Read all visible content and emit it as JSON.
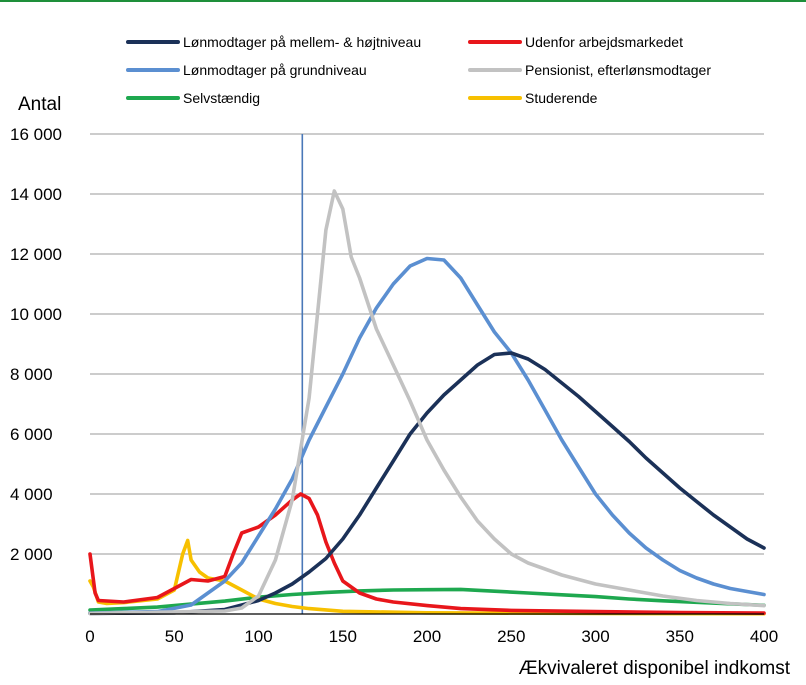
{
  "chart_data": {
    "type": "line",
    "title": "",
    "ylabel": "Antal",
    "xlabel": "Ækvivaleret disponibel indkomst",
    "xlim": [
      0,
      400
    ],
    "ylim": [
      0,
      16000
    ],
    "x_ticks": [
      "0",
      "50",
      "100",
      "150",
      "200",
      "250",
      "300",
      "350",
      "400"
    ],
    "y_ticks": [
      "2 000",
      "4 000",
      "6 000",
      "8 000",
      "10 000",
      "12 000",
      "14 000",
      "16 000"
    ],
    "grid": "horizontal",
    "legend_position": "top",
    "reference_line_x": 126,
    "series": [
      {
        "name": "Lønmodtager på mellem- & højtniveau",
        "color": "#1b3158",
        "points": [
          [
            0,
            20
          ],
          [
            50,
            40
          ],
          [
            80,
            150
          ],
          [
            100,
            450
          ],
          [
            110,
            700
          ],
          [
            120,
            1000
          ],
          [
            130,
            1400
          ],
          [
            140,
            1850
          ],
          [
            150,
            2500
          ],
          [
            160,
            3300
          ],
          [
            170,
            4200
          ],
          [
            180,
            5100
          ],
          [
            190,
            6000
          ],
          [
            200,
            6700
          ],
          [
            210,
            7300
          ],
          [
            220,
            7800
          ],
          [
            230,
            8300
          ],
          [
            240,
            8650
          ],
          [
            250,
            8700
          ],
          [
            260,
            8500
          ],
          [
            270,
            8150
          ],
          [
            280,
            7700
          ],
          [
            290,
            7250
          ],
          [
            300,
            6750
          ],
          [
            310,
            6250
          ],
          [
            320,
            5750
          ],
          [
            330,
            5200
          ],
          [
            340,
            4700
          ],
          [
            350,
            4200
          ],
          [
            360,
            3750
          ],
          [
            370,
            3300
          ],
          [
            380,
            2900
          ],
          [
            390,
            2500
          ],
          [
            400,
            2200
          ]
        ]
      },
      {
        "name": "Udenfor arbejdsmarkedet",
        "color": "#e8161b",
        "points": [
          [
            0,
            2000
          ],
          [
            3,
            700
          ],
          [
            5,
            450
          ],
          [
            20,
            400
          ],
          [
            40,
            550
          ],
          [
            50,
            850
          ],
          [
            60,
            1150
          ],
          [
            70,
            1100
          ],
          [
            80,
            1250
          ],
          [
            85,
            2000
          ],
          [
            90,
            2700
          ],
          [
            100,
            2900
          ],
          [
            110,
            3300
          ],
          [
            120,
            3800
          ],
          [
            125,
            4000
          ],
          [
            130,
            3850
          ],
          [
            135,
            3300
          ],
          [
            140,
            2400
          ],
          [
            145,
            1700
          ],
          [
            150,
            1100
          ],
          [
            160,
            700
          ],
          [
            170,
            500
          ],
          [
            180,
            400
          ],
          [
            200,
            280
          ],
          [
            220,
            180
          ],
          [
            250,
            120
          ],
          [
            300,
            80
          ],
          [
            350,
            50
          ],
          [
            400,
            30
          ]
        ]
      },
      {
        "name": "Lønmodtager på grundniveau",
        "color": "#5b8fd1",
        "points": [
          [
            0,
            30
          ],
          [
            40,
            80
          ],
          [
            60,
            300
          ],
          [
            80,
            1100
          ],
          [
            90,
            1700
          ],
          [
            100,
            2600
          ],
          [
            110,
            3500
          ],
          [
            120,
            4500
          ],
          [
            130,
            5800
          ],
          [
            140,
            6900
          ],
          [
            150,
            8000
          ],
          [
            160,
            9200
          ],
          [
            170,
            10200
          ],
          [
            180,
            11000
          ],
          [
            190,
            11600
          ],
          [
            200,
            11850
          ],
          [
            210,
            11800
          ],
          [
            220,
            11200
          ],
          [
            230,
            10300
          ],
          [
            240,
            9400
          ],
          [
            250,
            8700
          ],
          [
            260,
            7800
          ],
          [
            270,
            6800
          ],
          [
            280,
            5800
          ],
          [
            290,
            4900
          ],
          [
            300,
            4000
          ],
          [
            310,
            3300
          ],
          [
            320,
            2700
          ],
          [
            330,
            2200
          ],
          [
            340,
            1800
          ],
          [
            350,
            1450
          ],
          [
            360,
            1200
          ],
          [
            370,
            1000
          ],
          [
            380,
            850
          ],
          [
            390,
            750
          ],
          [
            400,
            650
          ]
        ]
      },
      {
        "name": "Pensionist, efterlønsmodtager",
        "color": "#c2c2c2",
        "points": [
          [
            0,
            20
          ],
          [
            80,
            100
          ],
          [
            90,
            200
          ],
          [
            100,
            600
          ],
          [
            110,
            1800
          ],
          [
            120,
            3800
          ],
          [
            130,
            7200
          ],
          [
            135,
            10000
          ],
          [
            140,
            12800
          ],
          [
            145,
            14100
          ],
          [
            150,
            13500
          ],
          [
            155,
            11900
          ],
          [
            160,
            11200
          ],
          [
            170,
            9500
          ],
          [
            180,
            8300
          ],
          [
            190,
            7100
          ],
          [
            200,
            5800
          ],
          [
            210,
            4800
          ],
          [
            220,
            3900
          ],
          [
            230,
            3100
          ],
          [
            240,
            2500
          ],
          [
            250,
            2000
          ],
          [
            260,
            1700
          ],
          [
            270,
            1500
          ],
          [
            280,
            1300
          ],
          [
            290,
            1150
          ],
          [
            300,
            1000
          ],
          [
            320,
            800
          ],
          [
            340,
            600
          ],
          [
            360,
            450
          ],
          [
            380,
            350
          ],
          [
            400,
            280
          ]
        ]
      },
      {
        "name": "Selvstændig",
        "color": "#1ea84f",
        "points": [
          [
            0,
            130
          ],
          [
            20,
            180
          ],
          [
            40,
            230
          ],
          [
            60,
            330
          ],
          [
            80,
            430
          ],
          [
            100,
            560
          ],
          [
            120,
            650
          ],
          [
            140,
            720
          ],
          [
            160,
            770
          ],
          [
            180,
            800
          ],
          [
            200,
            810
          ],
          [
            220,
            820
          ],
          [
            240,
            760
          ],
          [
            260,
            700
          ],
          [
            280,
            640
          ],
          [
            300,
            580
          ],
          [
            320,
            500
          ],
          [
            340,
            440
          ],
          [
            360,
            390
          ],
          [
            380,
            340
          ],
          [
            400,
            290
          ]
        ]
      },
      {
        "name": "Studerende",
        "color": "#f7c000",
        "points": [
          [
            0,
            1100
          ],
          [
            2,
            900
          ],
          [
            5,
            400
          ],
          [
            10,
            350
          ],
          [
            20,
            380
          ],
          [
            40,
            500
          ],
          [
            50,
            800
          ],
          [
            55,
            2000
          ],
          [
            58,
            2450
          ],
          [
            60,
            1800
          ],
          [
            65,
            1400
          ],
          [
            70,
            1200
          ],
          [
            80,
            1100
          ],
          [
            90,
            800
          ],
          [
            100,
            500
          ],
          [
            110,
            350
          ],
          [
            120,
            250
          ],
          [
            130,
            180
          ],
          [
            150,
            90
          ],
          [
            200,
            40
          ],
          [
            300,
            15
          ],
          [
            400,
            10
          ]
        ]
      }
    ]
  }
}
